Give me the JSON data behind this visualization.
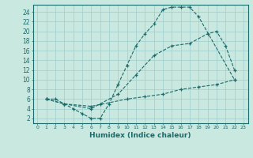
{
  "title": "",
  "xlabel": "Humidex (Indice chaleur)",
  "background_color": "#c8e8e0",
  "line_color": "#1a6b6b",
  "grid_color": "#9ecece",
  "xlim": [
    -0.5,
    23.5
  ],
  "ylim": [
    1,
    25.5
  ],
  "xticks": [
    0,
    1,
    2,
    3,
    4,
    5,
    6,
    7,
    8,
    9,
    10,
    11,
    12,
    13,
    14,
    15,
    16,
    17,
    18,
    19,
    20,
    21,
    22,
    23
  ],
  "yticks": [
    2,
    4,
    6,
    8,
    10,
    12,
    14,
    16,
    18,
    20,
    22,
    24
  ],
  "curve1_x": [
    1,
    2,
    3,
    4,
    5,
    6,
    7,
    8,
    9,
    10,
    11,
    12,
    13,
    14,
    15,
    16,
    17,
    18,
    22
  ],
  "curve1_y": [
    6,
    6,
    5,
    4,
    3,
    2,
    2,
    5,
    9,
    13,
    17,
    19.5,
    21.5,
    24.5,
    25,
    25,
    25,
    23,
    10
  ],
  "curve2_x": [
    1,
    3,
    6,
    7,
    9,
    11,
    13,
    15,
    17,
    19,
    20,
    21,
    22
  ],
  "curve2_y": [
    6,
    5,
    4,
    5,
    7,
    11,
    15,
    17,
    17.5,
    19.5,
    20,
    17,
    12
  ],
  "curve3_x": [
    1,
    3,
    6,
    10,
    12,
    14,
    16,
    18,
    20,
    22
  ],
  "curve3_y": [
    6,
    5,
    4.5,
    6,
    6.5,
    7,
    8,
    8.5,
    9,
    10
  ]
}
